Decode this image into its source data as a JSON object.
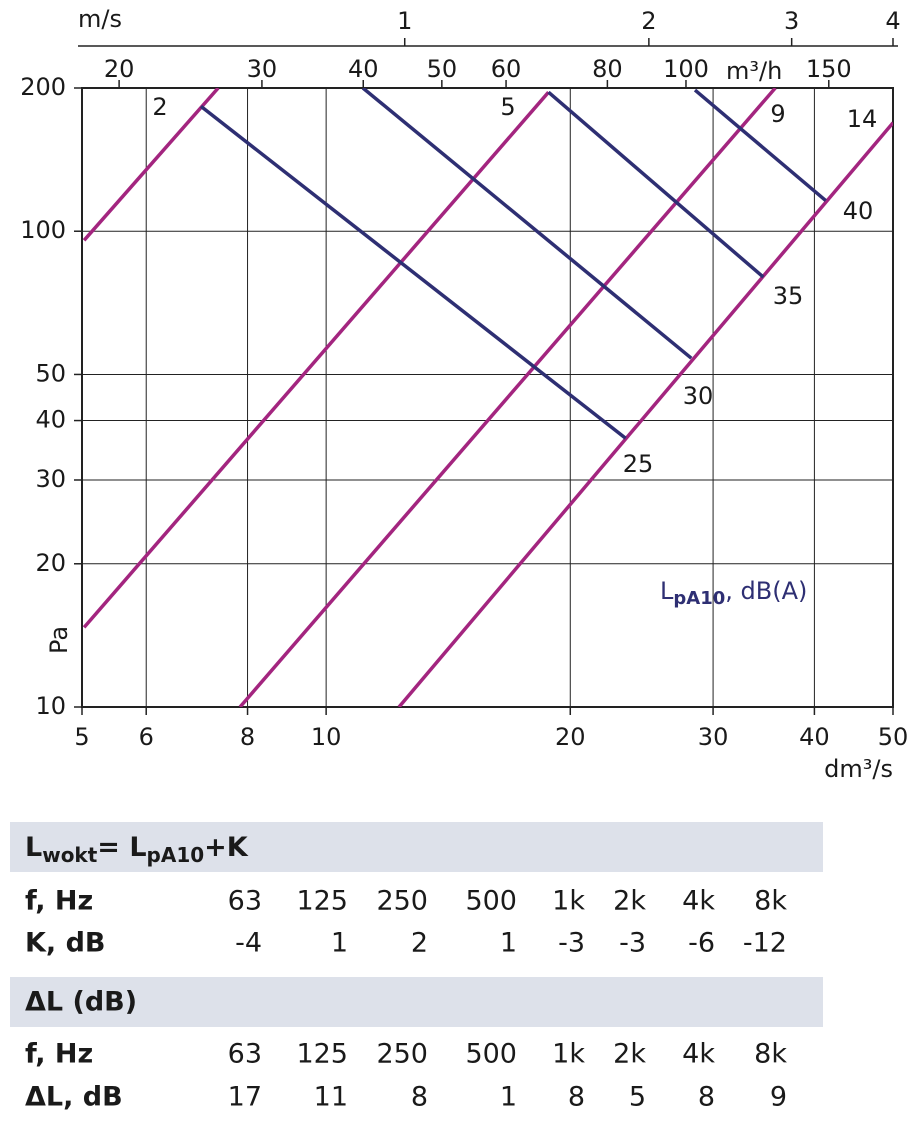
{
  "chart_data": {
    "type": "line",
    "xscale": "log",
    "yscale": "log",
    "grid": true,
    "xlabel": "dm³/s",
    "ylabel": "Pa",
    "xlim": [
      5,
      50
    ],
    "xticks": [
      5,
      6,
      8,
      10,
      20,
      30,
      40,
      50
    ],
    "ylim": [
      10,
      200
    ],
    "yticks": [
      10,
      20,
      30,
      40,
      50,
      100,
      200
    ],
    "top_axes": [
      {
        "label": "m³/h",
        "xlim": [
          18,
          180
        ],
        "xticks": [
          20,
          30,
          40,
          50,
          60,
          80,
          100,
          150
        ]
      },
      {
        "label": "m/s",
        "xlim": [
          0.4,
          4
        ],
        "xticks": [
          1,
          2,
          3,
          4
        ]
      }
    ],
    "annotation": {
      "main": "L",
      "sub": "pA10",
      "rest": ", dB(A)",
      "color": "#2e2f73"
    },
    "series": [
      {
        "name": "2",
        "color": "#a3257f",
        "x": [
          5.03,
          7.36
        ],
        "values": [
          95.7,
          200
        ]
      },
      {
        "name": "5",
        "color": "#a3257f",
        "x": [
          5.03,
          18.8
        ],
        "values": [
          14.7,
          196
        ]
      },
      {
        "name": "9",
        "color": "#a3257f",
        "x": [
          7.83,
          35.8
        ],
        "values": [
          10,
          200
        ]
      },
      {
        "name": "14",
        "color": "#a3257f",
        "x": [
          12.3,
          50
        ],
        "values": [
          10,
          169
        ]
      },
      {
        "name": "25",
        "color": "#2e2f73",
        "x": [
          7.01,
          23.4
        ],
        "values": [
          183,
          36.7
        ]
      },
      {
        "name": "30",
        "color": "#2e2f73",
        "x": [
          11.1,
          28.2
        ],
        "values": [
          200,
          54.1
        ]
      },
      {
        "name": "35",
        "color": "#2e2f73",
        "x": [
          18.8,
          34.6
        ],
        "values": [
          196,
          80.1
        ]
      },
      {
        "name": "40",
        "color": "#2e2f73",
        "x": [
          28.5,
          41.3
        ],
        "values": [
          198,
          116
        ]
      }
    ]
  },
  "tables": [
    {
      "title": {
        "a": "L",
        "b": "wokt",
        "c": "= L",
        "d": "pA10",
        "e": "+K"
      },
      "rows": [
        [
          "f, Hz",
          "63",
          "125",
          "250",
          "500",
          "1k",
          "2k",
          "4k",
          "8k"
        ],
        [
          "K, dB",
          -4,
          1,
          2,
          1,
          -3,
          -3,
          -6,
          -12
        ]
      ]
    },
    {
      "title": {
        "a": "ΔL (dB)"
      },
      "rows": [
        [
          "f, Hz",
          "63",
          "125",
          "250",
          "500",
          "1k",
          "2k",
          "4k",
          "8k"
        ],
        [
          "ΔL, dB",
          17,
          11,
          8,
          1,
          8,
          5,
          8,
          9
        ]
      ]
    }
  ]
}
